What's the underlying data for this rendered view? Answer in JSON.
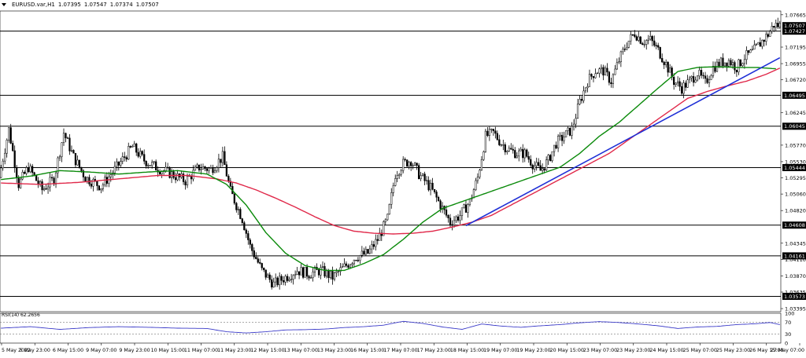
{
  "header": {
    "symbol": "EURUSD.var,H1",
    "ohlc": [
      "1.07395",
      "1.07547",
      "1.07374",
      "1.07507"
    ]
  },
  "colors": {
    "bull": "#000000",
    "bear": "#000000",
    "ma_fast": "#0a8a0a",
    "ma_slow": "#e0294a",
    "trendline": "#1e2fd6",
    "rsi": "#3a3ac8",
    "level": "#000000"
  },
  "chart_data": {
    "type": "candlestick",
    "price_axis": {
      "ylim": [
        1.0335,
        1.0772
      ],
      "ticks": [
        "1.07665",
        "1.07195",
        "1.06955",
        "1.06720",
        "1.06245",
        "1.05770",
        "1.05530",
        "1.05295",
        "1.05060",
        "1.04820",
        "1.04345",
        "1.04110",
        "1.03870",
        "1.03635",
        "1.03395"
      ]
    },
    "price_labels": [
      {
        "text": "1.07507",
        "value": 1.07507,
        "style": "current"
      },
      {
        "text": "1.07427",
        "value": 1.07427,
        "style": "level"
      },
      {
        "text": "1.06495",
        "value": 1.06495,
        "style": "level"
      },
      {
        "text": "1.06045",
        "value": 1.06045,
        "style": "level"
      },
      {
        "text": "1.05444",
        "value": 1.05444,
        "style": "level"
      },
      {
        "text": "1.04608",
        "value": 1.04608,
        "style": "level"
      },
      {
        "text": "1.04161",
        "value": 1.04161,
        "style": "level"
      },
      {
        "text": "1.03573",
        "value": 1.03573,
        "style": "level"
      }
    ],
    "horizontal_levels": [
      1.07427,
      1.06495,
      1.06045,
      1.05444,
      1.04608,
      1.04161,
      1.03573
    ],
    "time_labels": [
      "5 May 2022",
      "5 May 23:00",
      "6 May 15:00",
      "9 May 07:00",
      "9 May 23:00",
      "10 May 15:00",
      "11 May 07:00",
      "11 May 23:00",
      "12 May 15:00",
      "13 May 07:00",
      "13 May 23:00",
      "16 May 15:00",
      "17 May 07:00",
      "17 May 23:00",
      "18 May 15:00",
      "19 May 07:00",
      "19 May 23:00",
      "20 May 15:00",
      "23 May 07:00",
      "23 May 23:00",
      "24 May 15:00",
      "25 May 07:00",
      "25 May 23:00",
      "26 May 15:00",
      "27 May 07:00"
    ],
    "price_path": [
      [
        0,
        1.053
      ],
      [
        5,
        1.06
      ],
      [
        10,
        1.052
      ],
      [
        15,
        1.0545
      ],
      [
        22,
        1.0512
      ],
      [
        28,
        1.0528
      ],
      [
        33,
        1.0595
      ],
      [
        38,
        1.056
      ],
      [
        44,
        1.053
      ],
      [
        52,
        1.0517
      ],
      [
        60,
        1.0545
      ],
      [
        68,
        1.0575
      ],
      [
        74,
        1.0555
      ],
      [
        80,
        1.0545
      ],
      [
        88,
        1.0535
      ],
      [
        95,
        1.0525
      ],
      [
        102,
        1.0545
      ],
      [
        108,
        1.0542
      ],
      [
        114,
        1.056
      ],
      [
        118,
        1.051
      ],
      [
        124,
        1.047
      ],
      [
        128,
        1.043
      ],
      [
        134,
        1.0395
      ],
      [
        140,
        1.0375
      ],
      [
        146,
        1.0385
      ],
      [
        152,
        1.0395
      ],
      [
        158,
        1.039
      ],
      [
        164,
        1.0395
      ],
      [
        170,
        1.0385
      ],
      [
        176,
        1.04
      ],
      [
        182,
        1.0415
      ],
      [
        188,
        1.042
      ],
      [
        193,
        1.044
      ],
      [
        198,
        1.047
      ],
      [
        202,
        1.0535
      ],
      [
        206,
        1.055
      ],
      [
        210,
        1.0555
      ],
      [
        214,
        1.0535
      ],
      [
        220,
        1.0515
      ],
      [
        225,
        1.049
      ],
      [
        230,
        1.0465
      ],
      [
        235,
        1.0475
      ],
      [
        240,
        1.0495
      ],
      [
        244,
        1.053
      ],
      [
        248,
        1.059
      ],
      [
        252,
        1.0595
      ],
      [
        256,
        1.058
      ],
      [
        260,
        1.057
      ],
      [
        264,
        1.0565
      ],
      [
        268,
        1.0565
      ],
      [
        272,
        1.055
      ],
      [
        276,
        1.054
      ],
      [
        280,
        1.0555
      ],
      [
        284,
        1.058
      ],
      [
        288,
        1.059
      ],
      [
        292,
        1.06
      ],
      [
        296,
        1.064
      ],
      [
        300,
        1.067
      ],
      [
        304,
        1.0685
      ],
      [
        308,
        1.0685
      ],
      [
        312,
        1.067
      ],
      [
        316,
        1.07
      ],
      [
        320,
        1.0725
      ],
      [
        324,
        1.074
      ],
      [
        328,
        1.0728
      ],
      [
        332,
        1.073
      ],
      [
        336,
        1.0715
      ],
      [
        340,
        1.0695
      ],
      [
        344,
        1.067
      ],
      [
        348,
        1.066
      ],
      [
        352,
        1.067
      ],
      [
        356,
        1.0682
      ],
      [
        360,
        1.0667
      ],
      [
        364,
        1.069
      ],
      [
        368,
        1.0697
      ],
      [
        372,
        1.07
      ],
      [
        376,
        1.069
      ],
      [
        380,
        1.0705
      ],
      [
        384,
        1.0712
      ],
      [
        388,
        1.0725
      ],
      [
        392,
        1.0738
      ],
      [
        395,
        1.0752
      ],
      [
        397,
        1.0751
      ]
    ],
    "ma_fast": {
      "values": [
        [
          0,
          1.0527
        ],
        [
          15,
          1.0532
        ],
        [
          30,
          1.054
        ],
        [
          45,
          1.0538
        ],
        [
          60,
          1.0535
        ],
        [
          75,
          1.0538
        ],
        [
          90,
          1.054
        ],
        [
          105,
          1.0535
        ],
        [
          115,
          1.052
        ],
        [
          125,
          1.049
        ],
        [
          135,
          1.045
        ],
        [
          145,
          1.042
        ],
        [
          155,
          1.0402
        ],
        [
          165,
          1.0395
        ],
        [
          175,
          1.0395
        ],
        [
          185,
          1.0405
        ],
        [
          195,
          1.0418
        ],
        [
          205,
          1.044
        ],
        [
          215,
          1.0465
        ],
        [
          225,
          1.0485
        ],
        [
          235,
          1.0495
        ],
        [
          245,
          1.0505
        ],
        [
          255,
          1.0515
        ],
        [
          265,
          1.0525
        ],
        [
          275,
          1.0535
        ],
        [
          285,
          1.0545
        ],
        [
          295,
          1.0565
        ],
        [
          305,
          1.059
        ],
        [
          315,
          1.061
        ],
        [
          325,
          1.0635
        ],
        [
          335,
          1.066
        ],
        [
          345,
          1.0684
        ],
        [
          355,
          1.069
        ],
        [
          365,
          1.0691
        ],
        [
          375,
          1.069
        ],
        [
          385,
          1.069
        ],
        [
          395,
          1.0688
        ]
      ]
    },
    "ma_slow": {
      "values": [
        [
          0,
          1.0522
        ],
        [
          20,
          1.052
        ],
        [
          40,
          1.0523
        ],
        [
          60,
          1.0528
        ],
        [
          80,
          1.0533
        ],
        [
          95,
          1.0533
        ],
        [
          110,
          1.0528
        ],
        [
          120,
          1.0522
        ],
        [
          130,
          1.0512
        ],
        [
          140,
          1.05
        ],
        [
          150,
          1.0487
        ],
        [
          160,
          1.0473
        ],
        [
          170,
          1.046
        ],
        [
          180,
          1.0452
        ],
        [
          190,
          1.0449
        ],
        [
          200,
          1.0448
        ],
        [
          210,
          1.0449
        ],
        [
          220,
          1.0452
        ],
        [
          230,
          1.0458
        ],
        [
          240,
          1.0465
        ],
        [
          250,
          1.0475
        ],
        [
          260,
          1.049
        ],
        [
          270,
          1.0505
        ],
        [
          280,
          1.052
        ],
        [
          290,
          1.0535
        ],
        [
          300,
          1.055
        ],
        [
          310,
          1.0565
        ],
        [
          320,
          1.0585
        ],
        [
          330,
          1.0605
        ],
        [
          340,
          1.0625
        ],
        [
          350,
          1.0645
        ],
        [
          360,
          1.0655
        ],
        [
          370,
          1.0663
        ],
        [
          380,
          1.067
        ],
        [
          390,
          1.068
        ],
        [
          397,
          1.0689
        ]
      ]
    },
    "trendline": {
      "from": [
        237,
        1.046
      ],
      "to": [
        397,
        1.0704
      ]
    },
    "rsi": {
      "title": "RSI(14) 62.2656",
      "ylim": [
        0,
        100
      ],
      "ticks": [
        "100",
        "70",
        "30",
        "0"
      ],
      "levels": [
        70,
        30
      ],
      "values": [
        [
          0,
          50
        ],
        [
          15,
          55
        ],
        [
          30,
          46
        ],
        [
          45,
          52
        ],
        [
          60,
          55
        ],
        [
          75,
          53
        ],
        [
          90,
          50
        ],
        [
          105,
          49
        ],
        [
          115,
          38
        ],
        [
          125,
          34
        ],
        [
          135,
          38
        ],
        [
          145,
          44
        ],
        [
          155,
          45
        ],
        [
          165,
          47
        ],
        [
          175,
          52
        ],
        [
          185,
          55
        ],
        [
          195,
          60
        ],
        [
          205,
          73
        ],
        [
          215,
          66
        ],
        [
          225,
          54
        ],
        [
          235,
          46
        ],
        [
          245,
          64
        ],
        [
          255,
          57
        ],
        [
          265,
          53
        ],
        [
          275,
          58
        ],
        [
          285,
          62
        ],
        [
          295,
          68
        ],
        [
          305,
          72
        ],
        [
          315,
          69
        ],
        [
          325,
          64
        ],
        [
          335,
          58
        ],
        [
          345,
          49
        ],
        [
          355,
          54
        ],
        [
          365,
          56
        ],
        [
          375,
          62
        ],
        [
          385,
          65
        ],
        [
          392,
          69
        ],
        [
          397,
          62
        ]
      ]
    }
  }
}
